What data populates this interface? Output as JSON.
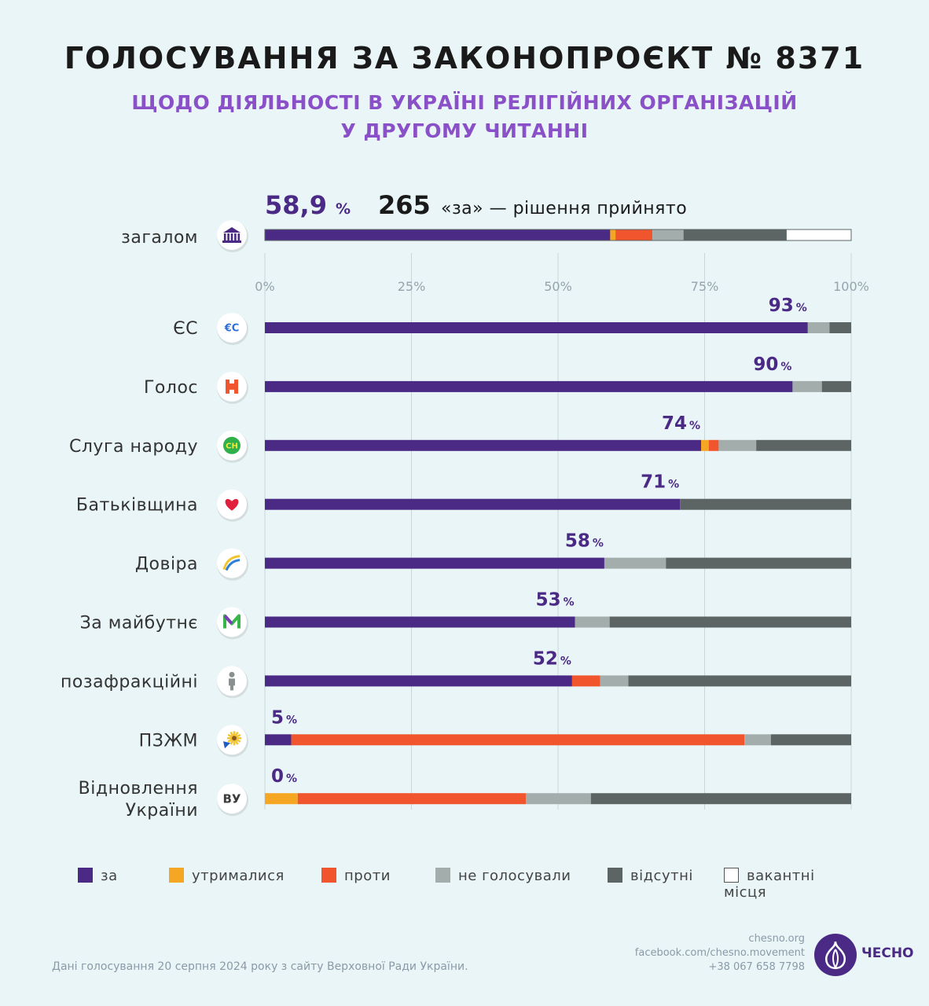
{
  "header": {
    "title": "ГОЛОСУВАННЯ ЗА ЗАКОНОПРОЄКТ № 8371",
    "subtitle_line1": "ЩОДО ДІЯЛЬНОСТІ В УКРАЇНІ РЕЛІГІЙНИХ ОРГАНІЗАЦІЙ",
    "subtitle_line2": "У ДРУГОМУ ЧИТАННІ"
  },
  "summary": {
    "percent": "58,9",
    "percent_sign": "%",
    "count": "265",
    "text": "«за» — рішення прийнято"
  },
  "legend": {
    "za": "за",
    "utrymalysia": "утрималися",
    "proty": "проти",
    "ne_holosuvaly": "не голосували",
    "vidsutni": "відсутні",
    "vakantni": "вакантні місця"
  },
  "footer": {
    "source": "Дані голосування 20 серпня 2024 року з сайту Верховної Ради України.",
    "site": "chesno.org",
    "facebook": "facebook.com/chesno.movement",
    "phone": "+38 067 658 7798",
    "logo_text": "ЧЕСНО"
  },
  "chart_data": {
    "type": "bar",
    "orientation": "horizontal",
    "stacked": true,
    "xlim": [
      0,
      100
    ],
    "x_ticks": [
      "0%",
      "25%",
      "50%",
      "75%",
      "100%"
    ],
    "grid": true,
    "legend_position": "bottom",
    "colors": {
      "за": "#4b2a86",
      "утрималися": "#f5a623",
      "проти": "#f0552d",
      "не голосували": "#a3aeac",
      "відсутні": "#5d6564",
      "вакантні місця": "#ffffff"
    },
    "total": {
      "label": "загалом",
      "icon": "parliament-icon",
      "segments": [
        {
          "name": "за",
          "value": 58.9
        },
        {
          "name": "утрималися",
          "value": 0.9
        },
        {
          "name": "проти",
          "value": 6.3
        },
        {
          "name": "не голосували",
          "value": 5.3
        },
        {
          "name": "відсутні",
          "value": 17.6
        },
        {
          "name": "вакантні місця",
          "value": 11.0
        }
      ]
    },
    "factions": [
      {
        "label": [
          "ЄС"
        ],
        "icon": "es-icon",
        "value_label": "93",
        "segments": [
          {
            "name": "за",
            "value": 92.6
          },
          {
            "name": "не голосували",
            "value": 3.7
          },
          {
            "name": "відсутні",
            "value": 3.7
          }
        ]
      },
      {
        "label": [
          "Голос"
        ],
        "icon": "holos-icon",
        "value_label": "90",
        "segments": [
          {
            "name": "за",
            "value": 90.0
          },
          {
            "name": "не голосували",
            "value": 5.0
          },
          {
            "name": "відсутні",
            "value": 5.0
          }
        ]
      },
      {
        "label": [
          "Слуга народу"
        ],
        "icon": "sluha-narodu-icon",
        "value_label": "74",
        "segments": [
          {
            "name": "за",
            "value": 74.4
          },
          {
            "name": "утрималися",
            "value": 1.3
          },
          {
            "name": "проти",
            "value": 1.7
          },
          {
            "name": "не голосували",
            "value": 6.4
          },
          {
            "name": "відсутні",
            "value": 16.2
          }
        ]
      },
      {
        "label": [
          "Батьківщина"
        ],
        "icon": "heart-icon",
        "value_label": "71",
        "segments": [
          {
            "name": "за",
            "value": 70.8
          },
          {
            "name": "відсутні",
            "value": 29.2
          }
        ]
      },
      {
        "label": [
          "Довіра"
        ],
        "icon": "dovira-icon",
        "value_label": "58",
        "segments": [
          {
            "name": "за",
            "value": 57.9
          },
          {
            "name": "не голосували",
            "value": 10.5
          },
          {
            "name": "відсутні",
            "value": 31.6
          }
        ]
      },
      {
        "label": [
          "За майбутнє"
        ],
        "icon": "za-maibutnie-icon",
        "value_label": "53",
        "segments": [
          {
            "name": "за",
            "value": 52.9
          },
          {
            "name": "не голосували",
            "value": 5.9
          },
          {
            "name": "відсутні",
            "value": 41.2
          }
        ]
      },
      {
        "label": [
          "позафракційні"
        ],
        "icon": "person-icon",
        "value_label": "52",
        "segments": [
          {
            "name": "за",
            "value": 52.4
          },
          {
            "name": "проти",
            "value": 4.8
          },
          {
            "name": "не голосували",
            "value": 4.8
          },
          {
            "name": "відсутні",
            "value": 38.0
          }
        ]
      },
      {
        "label": [
          "ПЗЖМ"
        ],
        "icon": "pzzhm-icon",
        "value_label": "5",
        "segments": [
          {
            "name": "за",
            "value": 4.5
          },
          {
            "name": "проти",
            "value": 77.3
          },
          {
            "name": "не голосували",
            "value": 4.5
          },
          {
            "name": "відсутні",
            "value": 13.7
          }
        ]
      },
      {
        "label": [
          "Відновлення",
          "України"
        ],
        "icon": "vu-icon",
        "value_label": "0",
        "segments": [
          {
            "name": "утрималися",
            "value": 5.6
          },
          {
            "name": "проти",
            "value": 38.9
          },
          {
            "name": "не голосували",
            "value": 11.1
          },
          {
            "name": "відсутні",
            "value": 44.4
          }
        ]
      }
    ],
    "value_suffix": "%"
  }
}
